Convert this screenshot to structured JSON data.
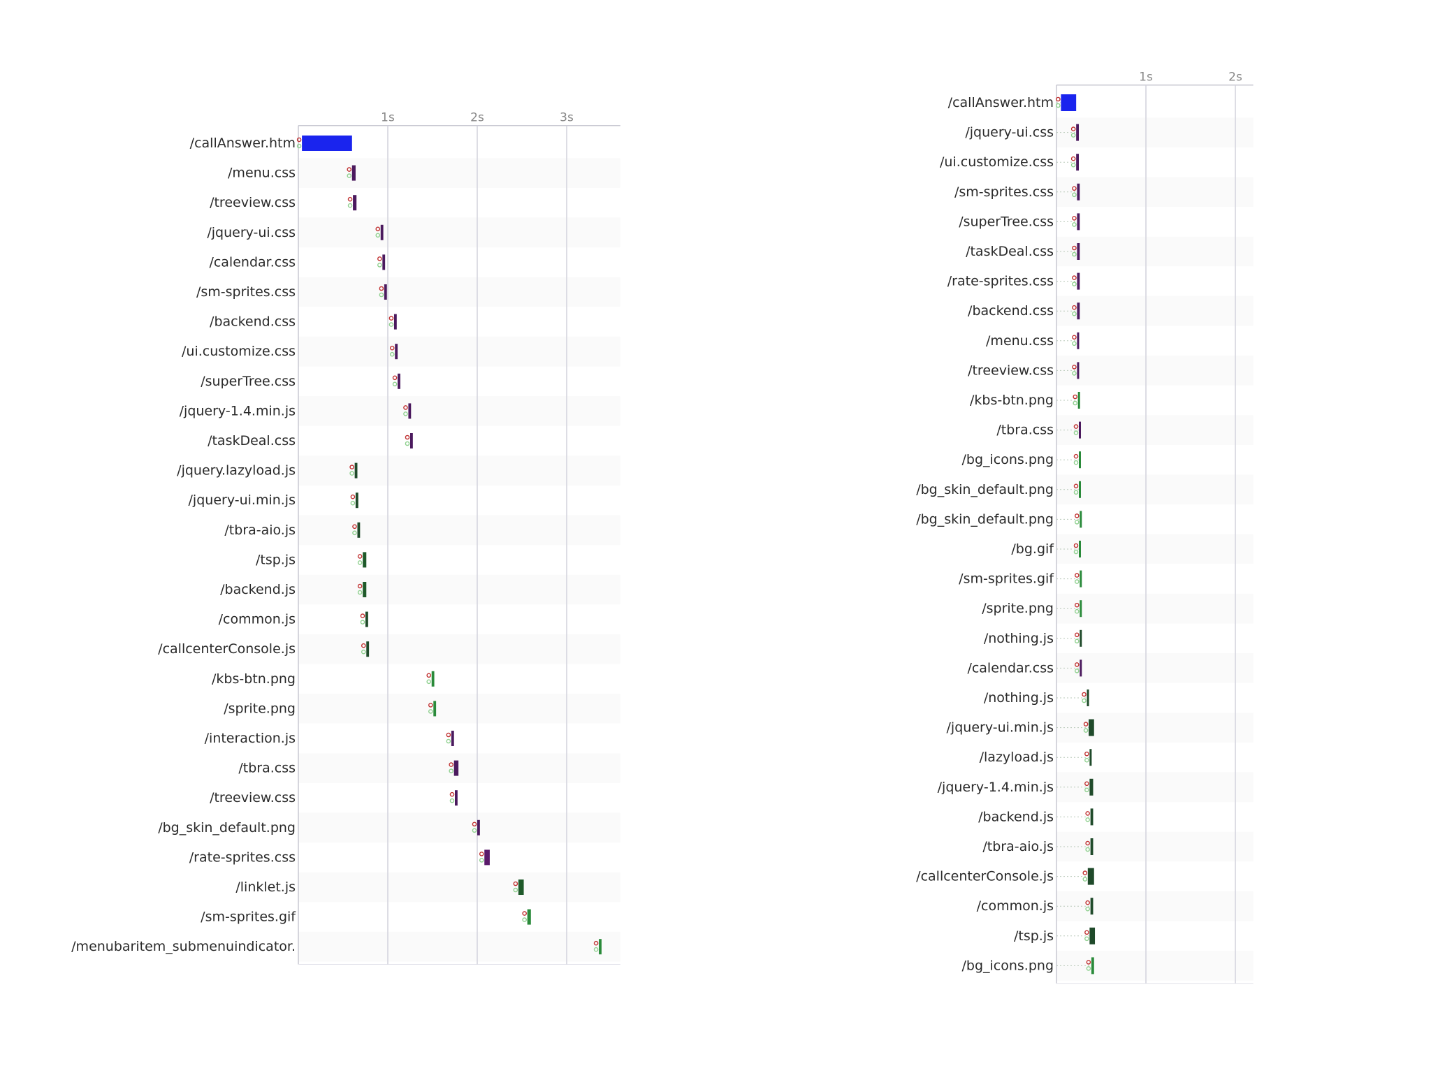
{
  "chart_data": [
    {
      "type": "bar",
      "xunit": "seconds",
      "xlim": [
        0,
        3.6
      ],
      "ticks": [
        {
          "value": 1,
          "label": "1s"
        },
        {
          "value": 2,
          "label": "2s"
        },
        {
          "value": 3,
          "label": "3s"
        }
      ],
      "rows": [
        {
          "label": "/callAnswer.htm",
          "start": 0.04,
          "end": 0.6,
          "color": "#1a24ee"
        },
        {
          "label": "/menu.css",
          "start": 0.6,
          "end": 0.64,
          "color": "#4b1a5e"
        },
        {
          "label": "/treeview.css",
          "start": 0.61,
          "end": 0.65,
          "color": "#4b1a5e"
        },
        {
          "label": "/jquery-ui.css",
          "start": 0.92,
          "end": 0.95,
          "color": "#4b1a5e"
        },
        {
          "label": "/calendar.css",
          "start": 0.94,
          "end": 0.97,
          "color": "#4b1a5e"
        },
        {
          "label": "/sm-sprites.css",
          "start": 0.96,
          "end": 0.99,
          "color": "#4b1a5e"
        },
        {
          "label": "/backend.css",
          "start": 1.07,
          "end": 1.1,
          "color": "#4b1a5e"
        },
        {
          "label": "/ui.customize.css",
          "start": 1.08,
          "end": 1.11,
          "color": "#4b1a5e"
        },
        {
          "label": "/superTree.css",
          "start": 1.11,
          "end": 1.14,
          "color": "#4b1a5e"
        },
        {
          "label": "/jquery-1.4.min.js",
          "start": 1.23,
          "end": 1.26,
          "color": "#4b1a5e"
        },
        {
          "label": "/taskDeal.css",
          "start": 1.25,
          "end": 1.28,
          "color": "#4b1a5e"
        },
        {
          "label": "/jquery.lazyload.js",
          "start": 0.63,
          "end": 0.66,
          "color": "#1f4a2a"
        },
        {
          "label": "/jquery-ui.min.js",
          "start": 0.64,
          "end": 0.67,
          "color": "#1f4a2a"
        },
        {
          "label": "/tbra-aio.js",
          "start": 0.66,
          "end": 0.69,
          "color": "#1f4a2a"
        },
        {
          "label": "/tsp.js",
          "start": 0.72,
          "end": 0.76,
          "color": "#1f5a2a"
        },
        {
          "label": "/backend.js",
          "start": 0.72,
          "end": 0.76,
          "color": "#1f5a2a"
        },
        {
          "label": "/common.js",
          "start": 0.75,
          "end": 0.78,
          "color": "#1f4a2a"
        },
        {
          "label": "/callcenterConsole.js",
          "start": 0.76,
          "end": 0.79,
          "color": "#1f4a2a"
        },
        {
          "label": "/kbs-btn.png",
          "start": 1.49,
          "end": 1.52,
          "color": "#2a8a3a"
        },
        {
          "label": "/sprite.png",
          "start": 1.51,
          "end": 1.54,
          "color": "#2a8a3a"
        },
        {
          "label": "/interaction.js",
          "start": 1.71,
          "end": 1.74,
          "color": "#4b1a5e"
        },
        {
          "label": "/tbra.css",
          "start": 1.74,
          "end": 1.79,
          "color": "#4b1a5e"
        },
        {
          "label": "/treeview.css",
          "start": 1.75,
          "end": 1.78,
          "color": "#4b1a5e"
        },
        {
          "label": "/bg_skin_default.png",
          "start": 2.0,
          "end": 2.03,
          "color": "#4b1a5e"
        },
        {
          "label": "/rate-sprites.css",
          "start": 2.08,
          "end": 2.14,
          "color": "#5a1a6a"
        },
        {
          "label": "/linklet.js",
          "start": 2.46,
          "end": 2.52,
          "color": "#1f5a2a"
        },
        {
          "label": "/sm-sprites.gif",
          "start": 2.56,
          "end": 2.6,
          "color": "#2a8a3a"
        },
        {
          "label": "/menubaritem_submenuindicator.",
          "start": 3.36,
          "end": 3.39,
          "color": "#2a8a3a"
        }
      ]
    },
    {
      "type": "bar",
      "xunit": "seconds",
      "xlim": [
        0,
        2.2
      ],
      "ticks": [
        {
          "value": 1,
          "label": "1s"
        },
        {
          "value": 2,
          "label": "2s"
        }
      ],
      "rows": [
        {
          "label": "/callAnswer.htm",
          "start": 0.05,
          "end": 0.22,
          "color": "#1a24ee"
        },
        {
          "label": "/jquery-ui.css",
          "start": 0.22,
          "end": 0.25,
          "color": "#4b1a5e"
        },
        {
          "label": "/ui.customize.css",
          "start": 0.22,
          "end": 0.25,
          "color": "#4b1a5e"
        },
        {
          "label": "/sm-sprites.css",
          "start": 0.23,
          "end": 0.26,
          "color": "#4b1a5e"
        },
        {
          "label": "/superTree.css",
          "start": 0.23,
          "end": 0.26,
          "color": "#4b1a5e"
        },
        {
          "label": "/taskDeal.css",
          "start": 0.23,
          "end": 0.26,
          "color": "#4b1a5e"
        },
        {
          "label": "/rate-sprites.css",
          "start": 0.23,
          "end": 0.26,
          "color": "#4b1a5e"
        },
        {
          "label": "/backend.css",
          "start": 0.23,
          "end": 0.26,
          "color": "#4b1a5e"
        },
        {
          "label": "/menu.css",
          "start": 0.23,
          "end": 0.25,
          "color": "#4b1a5e"
        },
        {
          "label": "/treeview.css",
          "start": 0.23,
          "end": 0.25,
          "color": "#4b1a5e"
        },
        {
          "label": "/kbs-btn.png",
          "start": 0.24,
          "end": 0.26,
          "color": "#2a8a3a"
        },
        {
          "label": "/tbra.css",
          "start": 0.25,
          "end": 0.27,
          "color": "#4b1a5e"
        },
        {
          "label": "/bg_icons.png",
          "start": 0.25,
          "end": 0.27,
          "color": "#2a8a3a"
        },
        {
          "label": "/bg_skin_default.png",
          "start": 0.25,
          "end": 0.27,
          "color": "#2a8a3a"
        },
        {
          "label": "/bg_skin_default.png",
          "start": 0.26,
          "end": 0.28,
          "color": "#2a8a3a"
        },
        {
          "label": "/bg.gif",
          "start": 0.25,
          "end": 0.27,
          "color": "#2a8a3a"
        },
        {
          "label": "/sm-sprites.gif",
          "start": 0.26,
          "end": 0.28,
          "color": "#2a8a3a"
        },
        {
          "label": "/sprite.png",
          "start": 0.26,
          "end": 0.28,
          "color": "#2a8a3a"
        },
        {
          "label": "/nothing.js",
          "start": 0.26,
          "end": 0.28,
          "color": "#1f4a2a"
        },
        {
          "label": "/calendar.css",
          "start": 0.26,
          "end": 0.28,
          "color": "#4b1a5e"
        },
        {
          "label": "/nothing.js",
          "start": 0.34,
          "end": 0.36,
          "color": "#1f4a2a"
        },
        {
          "label": "/jquery-ui.min.js",
          "start": 0.36,
          "end": 0.42,
          "color": "#1f4a2a"
        },
        {
          "label": "/lazyload.js",
          "start": 0.37,
          "end": 0.39,
          "color": "#1f4a2a"
        },
        {
          "label": "/jquery-1.4.min.js",
          "start": 0.37,
          "end": 0.41,
          "color": "#1f4a2a"
        },
        {
          "label": "/backend.js",
          "start": 0.38,
          "end": 0.41,
          "color": "#1f4a2a"
        },
        {
          "label": "/tbra-aio.js",
          "start": 0.38,
          "end": 0.41,
          "color": "#1f4a2a"
        },
        {
          "label": "/callcenterConsole.js",
          "start": 0.35,
          "end": 0.42,
          "color": "#1f4a2a"
        },
        {
          "label": "/common.js",
          "start": 0.38,
          "end": 0.41,
          "color": "#1f4a2a"
        },
        {
          "label": "/tsp.js",
          "start": 0.37,
          "end": 0.43,
          "color": "#1f4a2a"
        },
        {
          "label": "/bg_icons.png",
          "start": 0.39,
          "end": 0.42,
          "color": "#2a8a3a"
        }
      ]
    }
  ]
}
